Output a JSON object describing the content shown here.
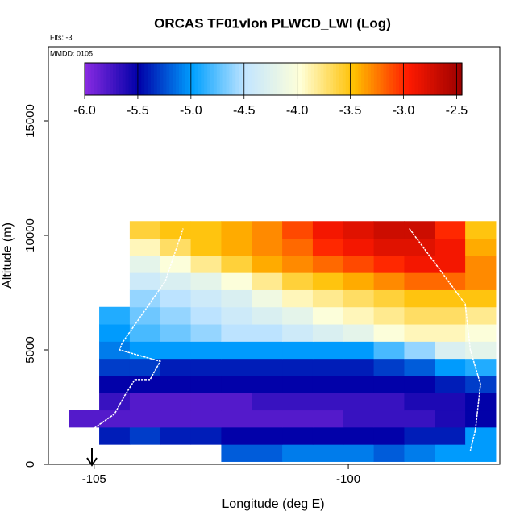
{
  "chart_data": {
    "type": "heatmap",
    "title": "ORCAS TF01vlon PLWCD_LWI (Log)",
    "subtitle": "Flts: -3",
    "annotation": "MMDD: 0105",
    "x_label": "Longitude (deg E)",
    "y_label": "Altitude (m)",
    "xlim": [
      -105.9,
      -97.02
    ],
    "xticks": [
      -105,
      -100
    ],
    "ylim": [
      0,
      18240
    ],
    "yticks": [
      0,
      5000,
      10000,
      15000
    ],
    "x": [
      -105.2,
      -104.6,
      -104.0,
      -103.4,
      -102.8,
      -102.2,
      -101.6,
      -101.0,
      -100.4,
      -99.8,
      -99.2,
      -98.6,
      -98.0,
      -97.4
    ],
    "y": [
      500,
      1250,
      2000,
      2750,
      3500,
      4250,
      5000,
      5750,
      6500,
      7250,
      8000,
      8750,
      9500,
      10250
    ],
    "z": [
      [
        null,
        null,
        null,
        null,
        null,
        -5.2,
        -5.2,
        -5.1,
        -5.1,
        -5.1,
        -5.2,
        -5.1,
        -5.0,
        -5.0
      ],
      [
        null,
        -5.4,
        -5.3,
        -5.4,
        -5.4,
        -5.5,
        -5.5,
        -5.5,
        -5.5,
        -5.5,
        -5.5,
        -5.4,
        -5.4,
        -5.0
      ],
      [
        -5.8,
        -5.8,
        -5.8,
        -5.8,
        -5.8,
        -5.8,
        -5.8,
        -5.8,
        -5.8,
        -5.7,
        -5.7,
        -5.7,
        -5.6,
        -5.5
      ],
      [
        null,
        -5.7,
        -5.8,
        -5.8,
        -5.8,
        -5.8,
        -5.7,
        -5.7,
        -5.7,
        -5.7,
        -5.7,
        -5.6,
        -5.6,
        -5.5
      ],
      [
        null,
        -5.5,
        -5.5,
        -5.5,
        -5.5,
        -5.5,
        -5.5,
        -5.5,
        -5.5,
        -5.5,
        -5.5,
        -5.5,
        -5.4,
        -5.3
      ],
      [
        null,
        -5.3,
        -5.3,
        -5.4,
        -5.4,
        -5.4,
        -5.4,
        -5.4,
        -5.4,
        -5.4,
        -5.3,
        -5.2,
        -5.0,
        -4.9
      ],
      [
        null,
        -5.1,
        -5.0,
        -5.0,
        -5.0,
        -5.0,
        -5.0,
        -5.0,
        -5.0,
        -5.0,
        -4.8,
        -4.6,
        -4.3,
        -4.2
      ],
      [
        null,
        -5.0,
        -4.8,
        -4.7,
        -4.6,
        -4.5,
        -4.5,
        -4.4,
        -4.3,
        -4.2,
        -4.0,
        -3.9,
        -3.9,
        -4.0
      ],
      [
        null,
        -4.9,
        -4.7,
        -4.6,
        -4.5,
        -4.4,
        -4.3,
        -4.2,
        -4.0,
        -3.9,
        -3.8,
        -3.7,
        -3.7,
        -3.8
      ],
      [
        null,
        null,
        -4.6,
        -4.5,
        -4.4,
        -4.3,
        -4.1,
        -3.9,
        -3.8,
        -3.7,
        -3.6,
        -3.5,
        -3.5,
        -3.5
      ],
      [
        null,
        null,
        -4.4,
        -4.3,
        -4.2,
        -4.0,
        -3.8,
        -3.6,
        -3.5,
        -3.4,
        -3.3,
        -3.2,
        -3.2,
        -3.3
      ],
      [
        null,
        null,
        -4.2,
        -4.0,
        -3.8,
        -3.6,
        -3.4,
        -3.3,
        -3.2,
        -3.1,
        -3.0,
        -2.9,
        -2.9,
        -3.3
      ],
      [
        null,
        null,
        -3.9,
        -3.7,
        -3.5,
        -3.4,
        -3.3,
        -3.2,
        -3.0,
        -2.9,
        -2.8,
        -2.8,
        -2.9,
        -3.4
      ],
      [
        null,
        null,
        -3.6,
        -3.5,
        -3.5,
        -3.4,
        -3.3,
        -3.1,
        -2.9,
        -2.8,
        -2.7,
        -2.7,
        -3.0,
        -3.5
      ]
    ],
    "clim": [
      -6,
      -2.45
    ],
    "cticks": [
      {
        "value": -6,
        "label": "-6.0"
      },
      -5.5,
      {
        "value": -5,
        "label": "-5.0"
      },
      -4.5,
      {
        "value": -4,
        "label": "-4.0"
      },
      -3.5,
      {
        "value": -3,
        "label": "-3.0"
      },
      -2.5
    ],
    "colormap": [
      "#8a2be2",
      "#0000a8",
      "#00a0ff",
      "#c4e6ff",
      "#ffffd8",
      "#ffc000",
      "#ff1a00",
      "#9a0000"
    ],
    "track": {
      "color": "#ffffff",
      "x": [
        -105.05,
        -104.6,
        -104.4,
        -104.2,
        -103.9,
        -103.7,
        -104.5,
        -104.45,
        -103.6,
        -103.25,
        null,
        -98.8,
        -98.2,
        -97.7,
        -97.6,
        -97.4,
        -97.5,
        -97.6
      ],
      "y": [
        1500,
        2200,
        3000,
        3700,
        3700,
        4500,
        5000,
        5300,
        8000,
        10300,
        null,
        10300,
        8500,
        7000,
        5000,
        3500,
        1500,
        600
      ]
    }
  }
}
